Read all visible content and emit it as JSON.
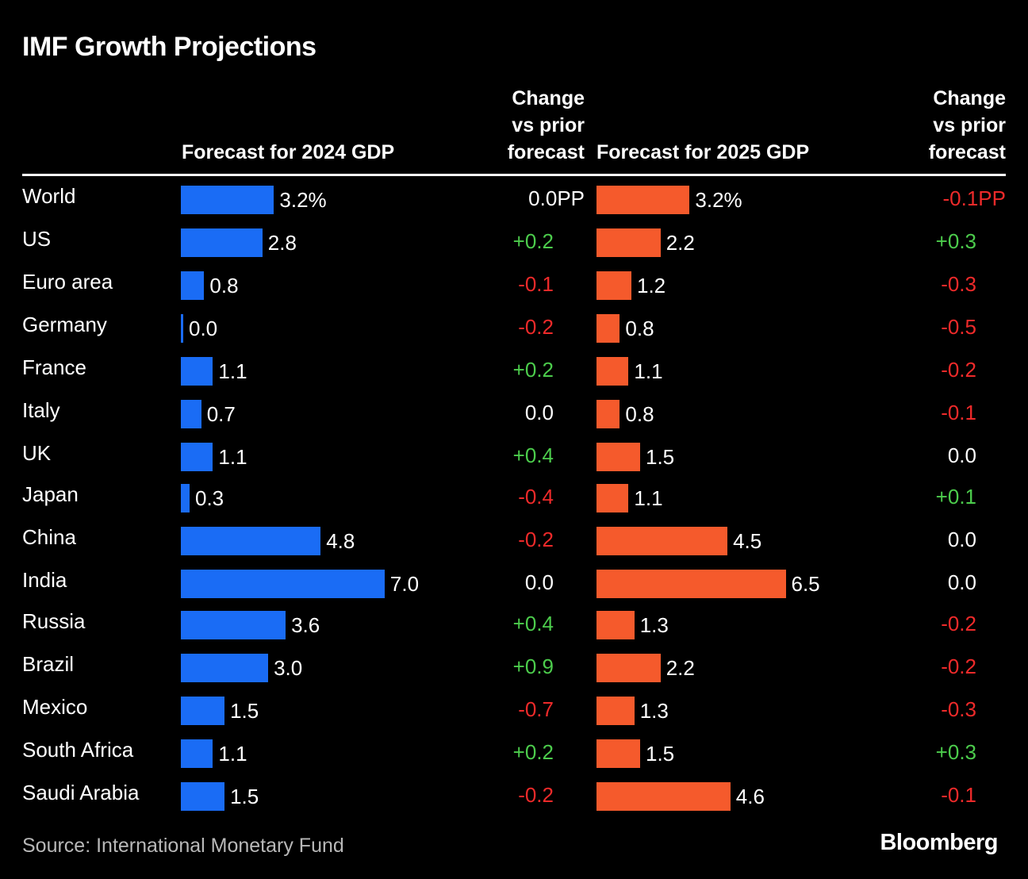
{
  "title": "IMF Growth Projections",
  "headers": {
    "forecast_2024": "Forecast for 2024 GDP",
    "change_2024": [
      "Change",
      "vs prior",
      "forecast"
    ],
    "forecast_2025": "Forecast for 2025 GDP",
    "change_2025": [
      "Change",
      "vs prior",
      "forecast"
    ]
  },
  "colors": {
    "bar_2024": "#1a6cf5",
    "bar_2025": "#f55a2c",
    "positive": "#4ccc4c",
    "negative": "#ee2a2a",
    "neutral": "#ffffff"
  },
  "chart_data": {
    "type": "bar",
    "orientation": "horizontal",
    "categories": [
      "World",
      "US",
      "Euro area",
      "Germany",
      "France",
      "Italy",
      "UK",
      "Japan",
      "China",
      "India",
      "Russia",
      "Brazil",
      "Mexico",
      "South Africa",
      "Saudi Arabia"
    ],
    "series": [
      {
        "name": "Forecast for 2024 GDP",
        "values": [
          3.2,
          2.8,
          0.8,
          0.0,
          1.1,
          0.7,
          1.1,
          0.3,
          4.8,
          7.0,
          3.6,
          3.0,
          1.5,
          1.1,
          1.5
        ],
        "labels": [
          "3.2%",
          "2.8",
          "0.8",
          "0.0",
          "1.1",
          "0.7",
          "1.1",
          "0.3",
          "4.8",
          "7.0",
          "3.6",
          "3.0",
          "1.5",
          "1.1",
          "1.5"
        ],
        "change": [
          "0.0PP",
          "+0.2",
          "-0.1",
          "-0.2",
          "+0.2",
          "0.0",
          "+0.4",
          "-0.4",
          "-0.2",
          "0.0",
          "+0.4",
          "+0.9",
          "-0.7",
          "+0.2",
          "-0.2"
        ]
      },
      {
        "name": "Forecast for 2025 GDP",
        "values": [
          3.2,
          2.2,
          1.2,
          0.8,
          1.1,
          0.8,
          1.5,
          1.1,
          4.5,
          6.5,
          1.3,
          2.2,
          1.3,
          1.5,
          4.6
        ],
        "labels": [
          "3.2%",
          "2.2",
          "1.2",
          "0.8",
          "1.1",
          "0.8",
          "1.5",
          "1.1",
          "4.5",
          "6.5",
          "1.3",
          "2.2",
          "1.3",
          "1.5",
          "4.6"
        ],
        "change": [
          "-0.1PP",
          "+0.3",
          "-0.3",
          "-0.5",
          "-0.2",
          "-0.1",
          "0.0",
          "+0.1",
          "0.0",
          "0.0",
          "-0.2",
          "-0.2",
          "-0.3",
          "+0.3",
          "-0.1"
        ]
      }
    ]
  },
  "footer": {
    "source": "Source: International Monetary Fund",
    "brand": "Bloomberg"
  }
}
